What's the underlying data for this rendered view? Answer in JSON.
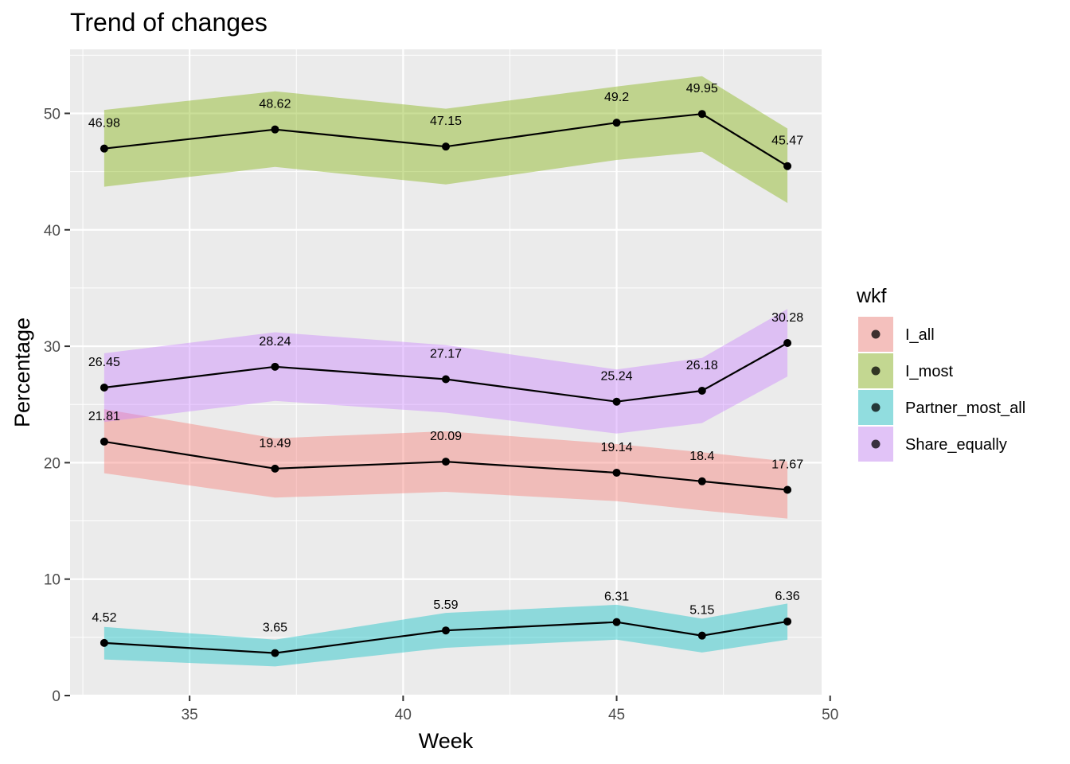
{
  "chart_data": {
    "type": "line",
    "title": "Trend of changes",
    "xlabel": "Week",
    "ylabel": "Percentage",
    "x": [
      33,
      37,
      41,
      45,
      47,
      49
    ],
    "xlim": [
      32.2,
      49.8
    ],
    "ylim": [
      0,
      55.5
    ],
    "x_ticks": [
      35,
      40,
      45,
      50
    ],
    "y_ticks": [
      0,
      10,
      20,
      30,
      40,
      50
    ],
    "grid": true,
    "legend": {
      "title": "wkf",
      "position": "right"
    },
    "series": [
      {
        "name": "I_all",
        "color": "#F8766D",
        "values": [
          21.81,
          19.49,
          20.09,
          19.14,
          18.4,
          17.67
        ],
        "lower": [
          19.1,
          17.0,
          17.5,
          16.7,
          15.9,
          15.2
        ],
        "upper": [
          24.6,
          22.1,
          22.7,
          21.6,
          20.9,
          20.1
        ]
      },
      {
        "name": "I_most",
        "color": "#7CAE00",
        "values": [
          46.98,
          48.62,
          47.15,
          49.2,
          49.95,
          45.47
        ],
        "lower": [
          43.7,
          45.4,
          43.9,
          46.0,
          46.7,
          42.3
        ],
        "upper": [
          50.3,
          51.9,
          50.4,
          52.3,
          53.2,
          48.7
        ]
      },
      {
        "name": "Partner_most_all",
        "color": "#00BFC4",
        "values": [
          4.52,
          3.65,
          5.59,
          6.31,
          5.15,
          6.36
        ],
        "lower": [
          3.1,
          2.5,
          4.1,
          4.8,
          3.7,
          4.8
        ],
        "upper": [
          5.9,
          4.8,
          7.1,
          7.8,
          6.6,
          7.9
        ]
      },
      {
        "name": "Share_equally",
        "color": "#C77CFF",
        "values": [
          26.45,
          28.24,
          27.17,
          25.24,
          26.18,
          30.28
        ],
        "lower": [
          23.5,
          25.3,
          24.3,
          22.5,
          23.4,
          27.4
        ],
        "upper": [
          29.4,
          31.2,
          30.1,
          28.0,
          29.0,
          33.2
        ]
      }
    ]
  }
}
